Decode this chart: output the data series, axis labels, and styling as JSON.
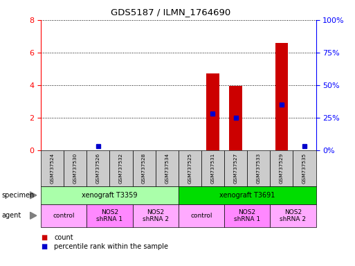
{
  "title": "GDS5187 / ILMN_1764690",
  "samples": [
    "GSM737524",
    "GSM737530",
    "GSM737526",
    "GSM737532",
    "GSM737528",
    "GSM737534",
    "GSM737525",
    "GSM737531",
    "GSM737527",
    "GSM737533",
    "GSM737529",
    "GSM737535"
  ],
  "counts": [
    0,
    0,
    0,
    0,
    0,
    0,
    0,
    4.7,
    3.95,
    0,
    6.6,
    0
  ],
  "percentiles": [
    0,
    0,
    3,
    0,
    0,
    0,
    0,
    28,
    25,
    0,
    35,
    3
  ],
  "ylim_left": [
    0,
    8
  ],
  "ylim_right": [
    0,
    100
  ],
  "yticks_left": [
    0,
    2,
    4,
    6,
    8
  ],
  "yticks_right": [
    0,
    25,
    50,
    75,
    100
  ],
  "ytick_labels_right": [
    "0%",
    "25%",
    "50%",
    "75%",
    "100%"
  ],
  "bar_color": "#cc0000",
  "dot_color": "#0000cc",
  "specimen_groups": [
    {
      "label": "xenograft T3359",
      "start": 0,
      "end": 6,
      "color": "#aaffaa"
    },
    {
      "label": "xenograft T3691",
      "start": 6,
      "end": 12,
      "color": "#00dd00"
    }
  ],
  "agent_groups": [
    {
      "label": "control",
      "start": 0,
      "end": 2,
      "color": "#ffaaff"
    },
    {
      "label": "NOS2\nshRNA 1",
      "start": 2,
      "end": 4,
      "color": "#ff88ff"
    },
    {
      "label": "NOS2\nshRNA 2",
      "start": 4,
      "end": 6,
      "color": "#ffaaff"
    },
    {
      "label": "control",
      "start": 6,
      "end": 8,
      "color": "#ffaaff"
    },
    {
      "label": "NOS2\nshRNA 1",
      "start": 8,
      "end": 10,
      "color": "#ff88ff"
    },
    {
      "label": "NOS2\nshRNA 2",
      "start": 10,
      "end": 12,
      "color": "#ffaaff"
    }
  ],
  "tick_bg_color": "#cccccc",
  "legend_count_color": "#cc0000",
  "legend_dot_color": "#0000cc",
  "bg_color": "#ffffff"
}
